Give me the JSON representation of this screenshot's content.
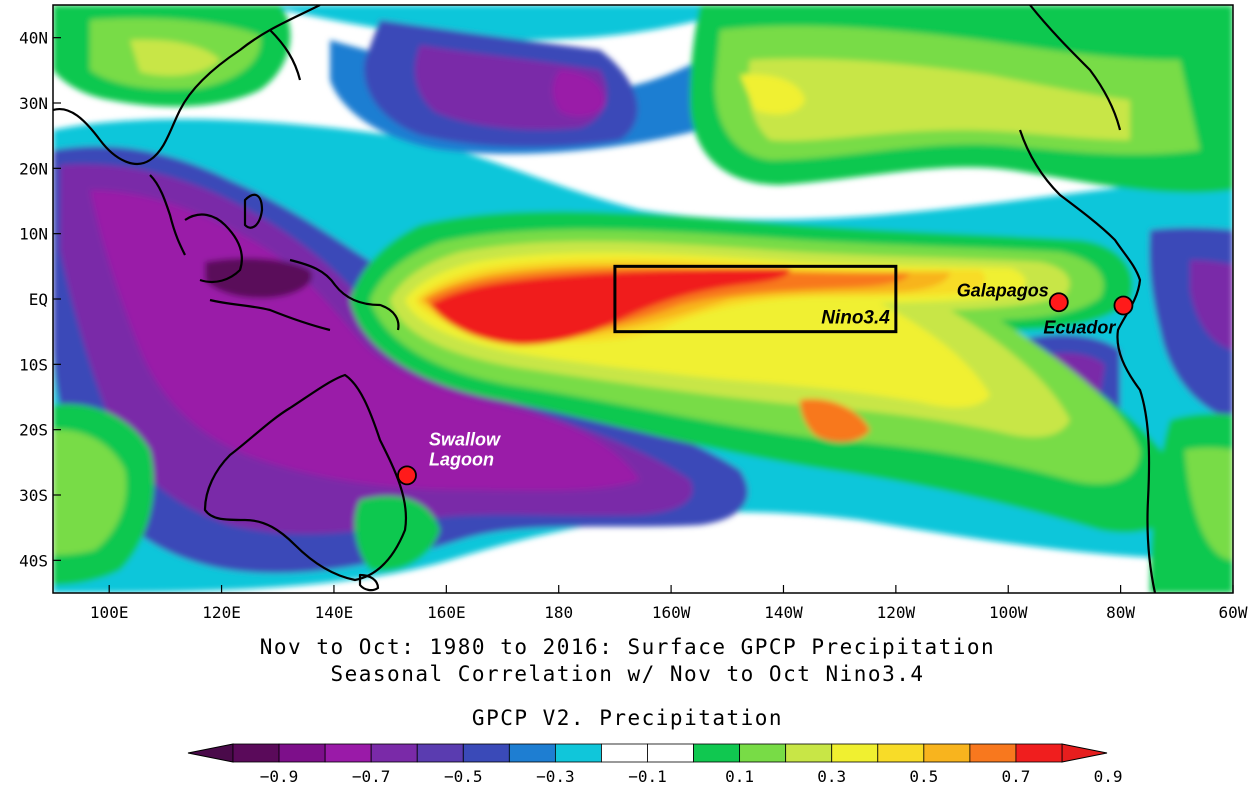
{
  "map": {
    "lon_labels": [
      "100E",
      "120E",
      "140E",
      "160E",
      "180",
      "160W",
      "140W",
      "120W",
      "100W",
      "80W",
      "60W"
    ],
    "lat_labels": [
      "40N",
      "30N",
      "20N",
      "10N",
      "EQ",
      "10S",
      "20S",
      "30S",
      "40S"
    ],
    "region": {
      "lon_min": 90,
      "lon_max": 300,
      "lat_min": -45,
      "lat_max": 45
    },
    "box": {
      "label": "Nino3.4",
      "lon_min": 190,
      "lon_max": 240,
      "lat_min": -5,
      "lat_max": 5
    },
    "sites": [
      {
        "name_lines": [
          "Swallow",
          "Lagoon"
        ],
        "lon": 153,
        "lat": -27,
        "label_color": "#ffffff"
      },
      {
        "name_lines": [
          "Galapagos"
        ],
        "lon": 269,
        "lat": -0.5,
        "label_color": "#000000"
      },
      {
        "name_lines": [
          "Ecuador"
        ],
        "lon": 280.5,
        "lat": -1,
        "label_color": "#000000"
      }
    ],
    "marker_color": "#ff1a1a"
  },
  "titles": {
    "line1": "Nov to Oct: 1980 to 2016: Surface GPCP Precipitation",
    "line2": "Seasonal Correlation w/ Nov to Oct Nino3.4",
    "line3": "GPCP V2. Precipitation"
  },
  "colorbar": {
    "colors": [
      "#5a0a5a",
      "#7d0f8a",
      "#9a1aa8",
      "#7a2aa8",
      "#5a3cb0",
      "#3a4ab8",
      "#1e7ed2",
      "#10c6da",
      "#ffffff",
      "#ffffff",
      "#10c850",
      "#78dc46",
      "#c8e646",
      "#f0f030",
      "#f8dc28",
      "#f8b41e",
      "#f8781e",
      "#f01e1e"
    ],
    "under_color": "#4a0a4a",
    "over_color": "#e61e1e",
    "ticks": [
      "-0.9",
      "-0.7",
      "-0.5",
      "-0.3",
      "-0.1",
      "0.1",
      "0.3",
      "0.5",
      "0.7",
      "0.9"
    ]
  }
}
